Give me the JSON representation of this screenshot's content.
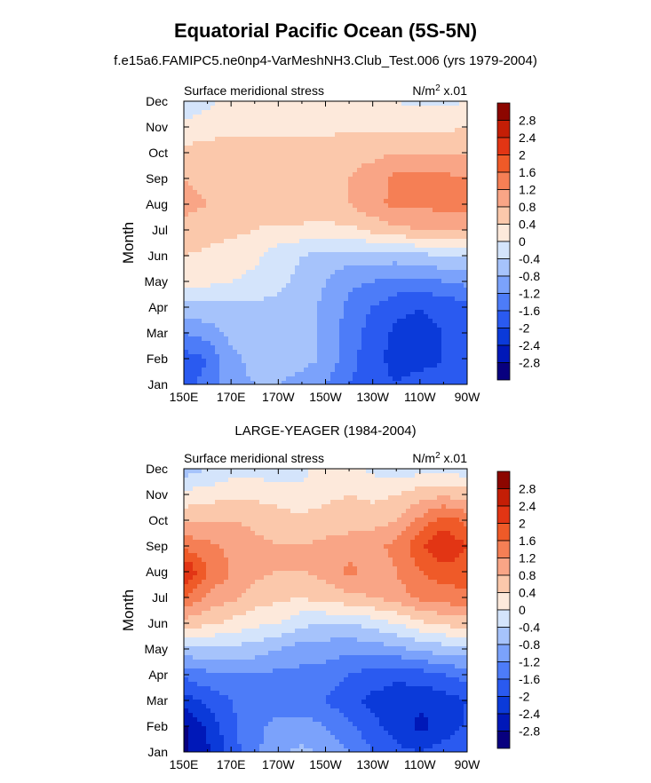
{
  "figure": {
    "title": "Equatorial Pacific Ocean (5S-5N)",
    "subtitle": "f.e15a6.FAMIPC5.ne0np4-VarMeshNH3.Club_Test.006 (yrs 1979-2004)",
    "panel2_title": "LARGE-YEAGER (1984-2004)"
  },
  "colors": {
    "levels": [
      "#08007f",
      "#0018b8",
      "#0b3ad9",
      "#2a5af0",
      "#4d7cf8",
      "#7ba2fb",
      "#a6c3fb",
      "#d4e4fb",
      "#fde9db",
      "#fbc8ab",
      "#f9a586",
      "#f57f55",
      "#ef5a28",
      "#e23514",
      "#c41e06",
      "#8c0600"
    ]
  },
  "chart_data": [
    {
      "type": "heatmap",
      "panel_label": "Surface meridional stress",
      "units_label": "N/m² x.01",
      "xlabel": "",
      "ylabel": "Month",
      "x": [
        "150E",
        "170E",
        "170W",
        "150W",
        "130W",
        "110W",
        "90W"
      ],
      "xlim_deg_east": [
        150,
        270
      ],
      "y": [
        "Jan",
        "Feb",
        "Mar",
        "Apr",
        "May",
        "Jun",
        "Jul",
        "Aug",
        "Sep",
        "Oct",
        "Nov",
        "Dec"
      ],
      "colorbar": {
        "levels": [
          -2.8,
          -2.4,
          -2,
          -1.6,
          -1.2,
          -0.8,
          -0.4,
          0,
          0.4,
          0.8,
          1.2,
          1.6,
          2,
          2.4,
          2.8
        ],
        "labels": [
          "2.8",
          "2.4",
          "2",
          "1.6",
          "1.2",
          "0.8",
          "0.4",
          "0",
          "-0.4",
          "-0.8",
          "-1.2",
          "-1.6",
          "-2",
          "-2.4",
          "-2.8"
        ]
      },
      "values": [
        [
          -1.7,
          -1.5,
          -0.9,
          -0.8,
          -0.8,
          -1.0,
          -1.2,
          -1.6,
          -1.9,
          -2.0,
          -1.9,
          -1.9,
          -1.8
        ],
        [
          -1.8,
          -1.6,
          -0.9,
          -0.7,
          -0.6,
          -0.6,
          -0.9,
          -1.4,
          -1.9,
          -2.1,
          -2.1,
          -2.0,
          -1.9
        ],
        [
          -1.2,
          -1.0,
          -0.7,
          -0.5,
          -0.5,
          -0.6,
          -0.9,
          -1.4,
          -1.8,
          -2.1,
          -2.1,
          -2.0,
          -1.9
        ],
        [
          -0.5,
          -0.5,
          -0.5,
          -0.5,
          -0.5,
          -0.6,
          -0.9,
          -1.3,
          -1.6,
          -1.9,
          -2.0,
          -1.9,
          -1.7
        ],
        [
          0.1,
          0.1,
          0.0,
          -0.1,
          -0.3,
          -0.5,
          -0.8,
          -1.1,
          -1.2,
          -1.3,
          -1.3,
          -1.2,
          -1.1
        ],
        [
          0.4,
          0.3,
          0.2,
          0.1,
          -0.2,
          -0.4,
          -0.6,
          -0.6,
          -0.6,
          -0.6,
          -0.5,
          -0.4,
          -0.3
        ],
        [
          0.7,
          0.6,
          0.5,
          0.4,
          0.3,
          0.3,
          0.3,
          0.3,
          0.5,
          0.7,
          0.8,
          0.9,
          0.9
        ],
        [
          0.9,
          0.8,
          0.7,
          0.7,
          0.7,
          0.7,
          0.6,
          0.8,
          1.1,
          1.3,
          1.3,
          1.3,
          1.3
        ],
        [
          0.8,
          0.7,
          0.7,
          0.7,
          0.7,
          0.7,
          0.7,
          0.8,
          1.0,
          1.3,
          1.3,
          1.3,
          1.2
        ],
        [
          0.5,
          0.6,
          0.6,
          0.6,
          0.6,
          0.6,
          0.6,
          0.7,
          0.7,
          0.8,
          0.8,
          0.8,
          0.8
        ],
        [
          0.1,
          0.2,
          0.3,
          0.3,
          0.3,
          0.3,
          0.3,
          0.3,
          0.3,
          0.3,
          0.3,
          0.3,
          0.4
        ],
        [
          -0.3,
          -0.1,
          0.1,
          0.1,
          0.1,
          0.1,
          0.1,
          0.1,
          0.1,
          0.0,
          -0.1,
          -0.1,
          0.0
        ]
      ]
    },
    {
      "type": "heatmap",
      "panel_label": "Surface meridional stress",
      "units_label": "N/m² x.01",
      "xlabel": "",
      "ylabel": "Month",
      "x": [
        "150E",
        "170E",
        "170W",
        "150W",
        "130W",
        "110W",
        "90W"
      ],
      "xlim_deg_east": [
        150,
        270
      ],
      "y": [
        "Jan",
        "Feb",
        "Mar",
        "Apr",
        "May",
        "Jun",
        "Jul",
        "Aug",
        "Sep",
        "Oct",
        "Nov",
        "Dec"
      ],
      "colorbar": {
        "levels": [
          -2.8,
          -2.4,
          -2,
          -1.6,
          -1.2,
          -0.8,
          -0.4,
          0,
          0.4,
          0.8,
          1.2,
          1.6,
          2,
          2.4,
          2.8
        ],
        "labels": [
          "2.8",
          "2.4",
          "2",
          "1.6",
          "1.2",
          "0.8",
          "0.4",
          "0",
          "-0.4",
          "-0.8",
          "-1.2",
          "-1.6",
          "-2",
          "-2.4",
          "-2.8"
        ]
      },
      "values": [
        [
          -2.9,
          -2.5,
          -1.8,
          -1.3,
          -0.9,
          -0.7,
          -0.9,
          -1.2,
          -1.6,
          -1.9,
          -2.0,
          -1.8,
          -1.6
        ],
        [
          -2.9,
          -2.3,
          -1.7,
          -1.3,
          -1.1,
          -1.0,
          -1.2,
          -1.5,
          -1.9,
          -2.2,
          -2.5,
          -2.3,
          -1.9
        ],
        [
          -2.2,
          -1.9,
          -1.6,
          -1.4,
          -1.4,
          -1.5,
          -1.6,
          -1.9,
          -2.1,
          -2.2,
          -2.3,
          -2.2,
          -2.0
        ],
        [
          -1.5,
          -1.3,
          -1.2,
          -1.2,
          -1.3,
          -1.3,
          -1.4,
          -1.6,
          -1.8,
          -1.9,
          -1.8,
          -1.6,
          -1.4
        ],
        [
          -0.5,
          -0.5,
          -0.5,
          -0.6,
          -0.8,
          -1.0,
          -1.0,
          -1.1,
          -1.0,
          -0.9,
          -0.7,
          -0.6,
          -0.5
        ],
        [
          0.6,
          0.5,
          0.3,
          0.1,
          0.0,
          -0.3,
          -0.4,
          -0.4,
          -0.2,
          0.0,
          0.3,
          0.5,
          0.6
        ],
        [
          1.6,
          1.1,
          0.9,
          0.6,
          0.5,
          0.4,
          0.6,
          0.7,
          0.8,
          1.0,
          1.3,
          1.4,
          1.5
        ],
        [
          2.5,
          1.6,
          1.2,
          0.9,
          0.8,
          0.8,
          0.9,
          1.3,
          1.0,
          1.2,
          1.6,
          1.8,
          1.8
        ],
        [
          1.5,
          1.3,
          1.1,
          0.9,
          0.8,
          0.8,
          0.9,
          1.0,
          1.1,
          1.3,
          1.9,
          2.4,
          2.0
        ],
        [
          0.7,
          0.8,
          0.8,
          0.7,
          0.6,
          0.5,
          0.6,
          0.6,
          0.6,
          0.8,
          1.3,
          1.8,
          1.5
        ],
        [
          0.1,
          0.2,
          0.3,
          0.3,
          0.2,
          0.1,
          0.3,
          0.4,
          0.3,
          0.4,
          0.6,
          0.7,
          0.6
        ],
        [
          -0.6,
          -0.4,
          -0.2,
          -0.1,
          -0.3,
          -0.1,
          0.2,
          0.2,
          -0.1,
          -0.2,
          -0.2,
          -0.1,
          -0.3
        ]
      ]
    }
  ]
}
